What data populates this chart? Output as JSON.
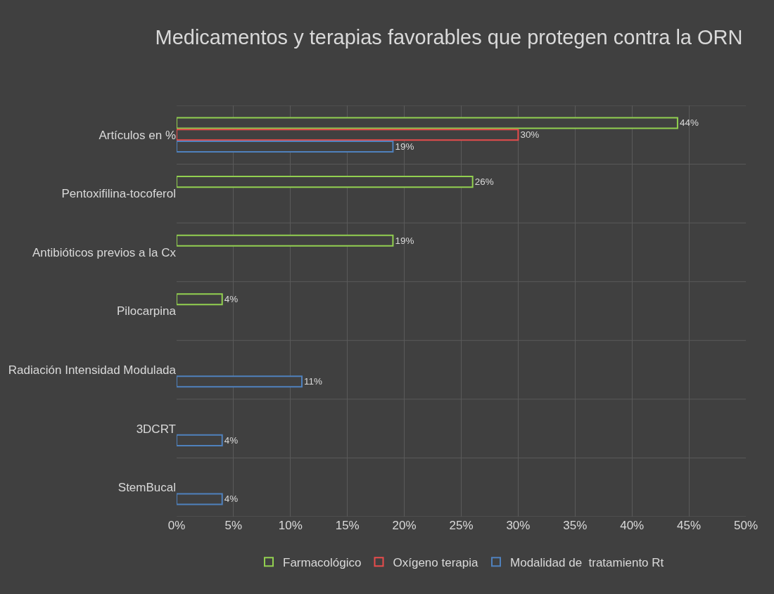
{
  "chart_data": {
    "type": "bar",
    "orientation": "horizontal",
    "title": "Medicamentos y terapias favorables que protegen contra la ORN",
    "categories": [
      "Artículos en %",
      "Pentoxifilina-tocoferol",
      "Antibióticos previos a la Cx",
      "Pilocarpina",
      "Radiación Intensidad Modulada",
      "3DCRT",
      "StemBucal"
    ],
    "series": [
      {
        "name": "Farmacológico",
        "color": "#92d050",
        "values": [
          44,
          26,
          19,
          4,
          null,
          null,
          null
        ],
        "value_labels": [
          "44%",
          "26%",
          "19%",
          "4%",
          null,
          null,
          null
        ]
      },
      {
        "name": "Oxígeno terapia",
        "color": "#e84c4c",
        "values": [
          30,
          null,
          null,
          null,
          null,
          null,
          null
        ],
        "value_labels": [
          "30%",
          null,
          null,
          null,
          null,
          null,
          null
        ]
      },
      {
        "name": "Modalidad de  tratamiento Rt",
        "color": "#4f81bd",
        "values": [
          19,
          null,
          null,
          null,
          11,
          4,
          4
        ],
        "value_labels": [
          "19%",
          null,
          null,
          null,
          "11%",
          "4%",
          "4%"
        ]
      }
    ],
    "xlim": [
      0,
      50
    ],
    "xticks": [
      {
        "value": 0,
        "label": "0%"
      },
      {
        "value": 5,
        "label": "5%"
      },
      {
        "value": 10,
        "label": "10%"
      },
      {
        "value": 15,
        "label": "15%"
      },
      {
        "value": 20,
        "label": "20%"
      },
      {
        "value": 25,
        "label": "25%"
      },
      {
        "value": 30,
        "label": "30%"
      },
      {
        "value": 35,
        "label": "35%"
      },
      {
        "value": 40,
        "label": "40%"
      },
      {
        "value": 45,
        "label": "45%"
      },
      {
        "value": 50,
        "label": "50%"
      }
    ],
    "grid": true,
    "legend": "bottom"
  }
}
